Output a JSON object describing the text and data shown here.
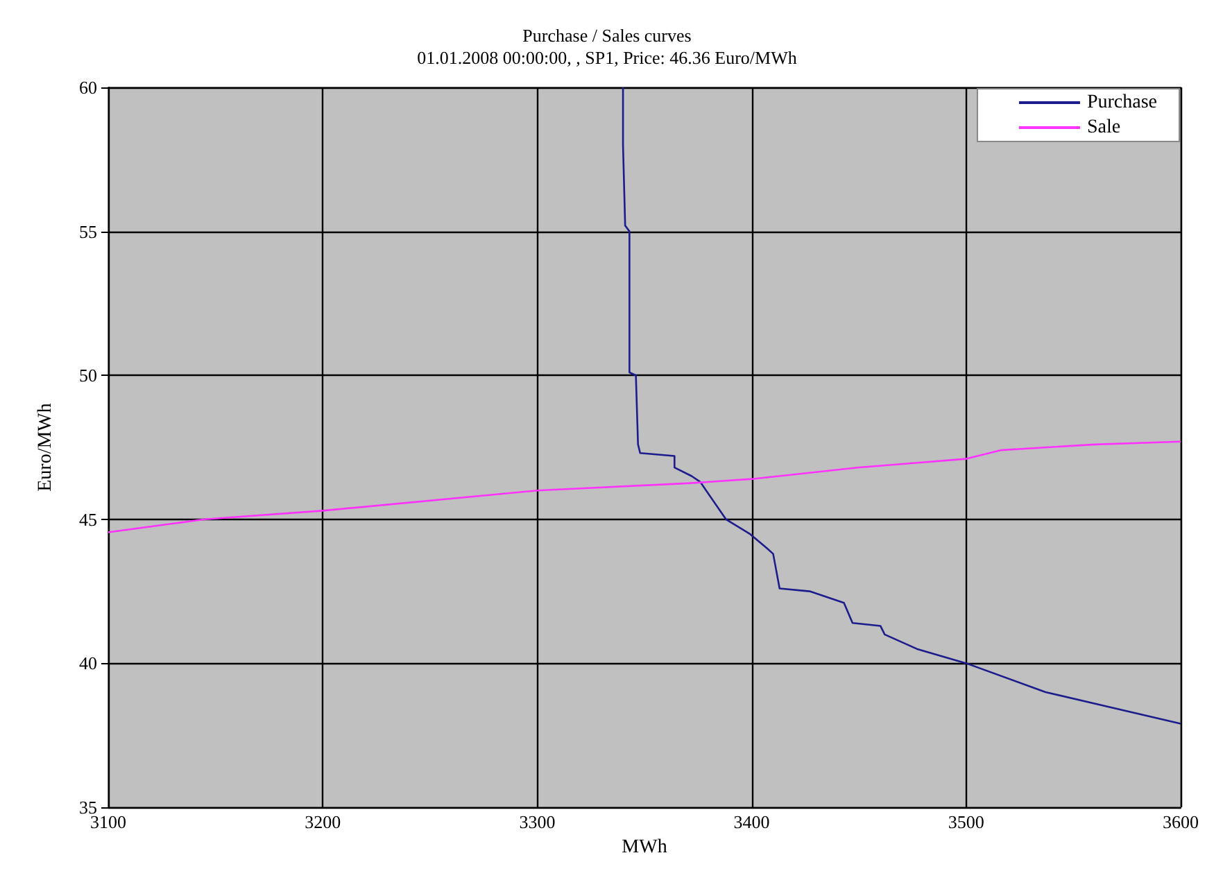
{
  "chart_data": {
    "type": "line",
    "title": "Purchase / Sales curves",
    "subtitle": "01.01.2008 00:00:00, , SP1, Price: 46.36 Euro/MWh",
    "xlabel": "MWh",
    "ylabel": "Euro/MWh",
    "xlim": [
      3100,
      3600
    ],
    "xticks": [
      3100,
      3200,
      3300,
      3400,
      3500,
      3600
    ],
    "ylim": [
      35,
      60
    ],
    "yticks": [
      35,
      40,
      45,
      50,
      55,
      60
    ],
    "grid": true,
    "legend": "top right",
    "marker": "none",
    "line_style": "solid",
    "series": [
      {
        "name": "Purchase",
        "color": "#1c1c8c",
        "x": [
          3340,
          3340,
          3341,
          3343,
          3343,
          3346,
          3347,
          3348,
          3364,
          3364,
          3372,
          3376,
          3388,
          3399,
          3407,
          3410,
          3413,
          3427,
          3443,
          3447,
          3460,
          3462,
          3477,
          3500,
          3537,
          3600
        ],
        "values": [
          60,
          58,
          55.2,
          55,
          50.1,
          50,
          47.6,
          47.3,
          47.2,
          46.8,
          46.5,
          46.3,
          45,
          44.5,
          44,
          43.8,
          42.6,
          42.5,
          42.1,
          41.4,
          41.3,
          41,
          40.5,
          40,
          39,
          37.9
        ]
      },
      {
        "name": "Sale",
        "color": "#ff33ff",
        "x": [
          3100,
          3145,
          3200,
          3300,
          3370,
          3400,
          3450,
          3500,
          3516,
          3560,
          3600
        ],
        "values": [
          44.55,
          45,
          45.3,
          46,
          46.25,
          46.4,
          46.8,
          47.1,
          47.4,
          47.6,
          47.7
        ]
      }
    ]
  }
}
